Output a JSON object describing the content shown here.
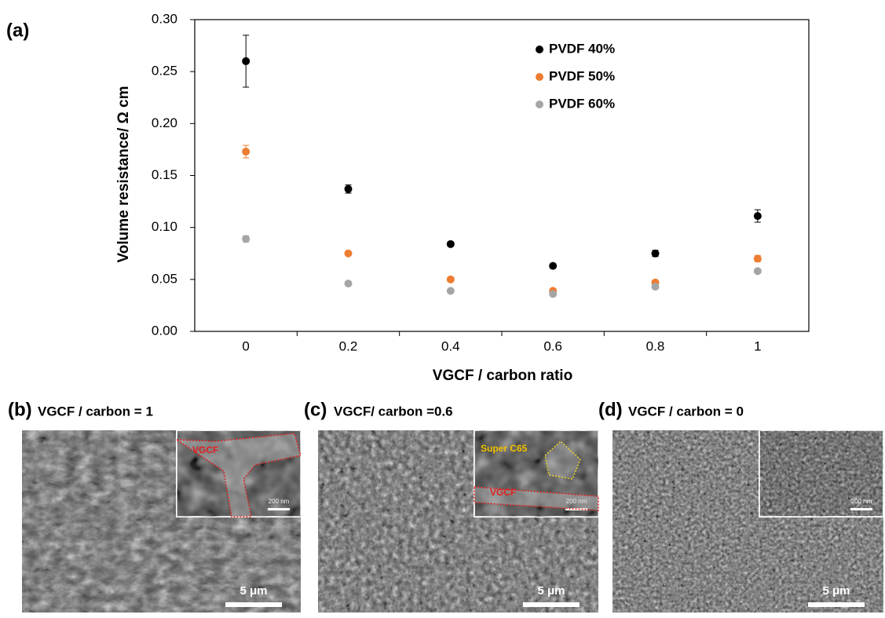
{
  "chart_data": {
    "type": "scatter",
    "panel_label": "(a)",
    "x_label": "VGCF / carbon ratio",
    "y_label": "Volume resistance/ Ω cm",
    "categories": [
      "0",
      "0.2",
      "0.4",
      "0.6",
      "0.8",
      "1"
    ],
    "series": [
      {
        "name": "PVDF 40%",
        "color": "#000000",
        "values": [
          0.26,
          0.137,
          0.084,
          0.063,
          0.075,
          0.111
        ],
        "errors": [
          0.025,
          0.004,
          0.002,
          0.002,
          0.003,
          0.006
        ]
      },
      {
        "name": "PVDF 50%",
        "color": "#ed7d31",
        "values": [
          0.173,
          0.075,
          0.05,
          0.039,
          0.047,
          0.07
        ],
        "errors": [
          0.006,
          0.002,
          0.002,
          0.001,
          0.002,
          0.003
        ]
      },
      {
        "name": "PVDF 60%",
        "color": "#a5a5a5",
        "values": [
          0.089,
          0.046,
          0.039,
          0.036,
          0.043,
          0.058
        ],
        "errors": [
          0.003,
          0.002,
          0.001,
          0.001,
          0.002,
          0.002
        ]
      }
    ],
    "ylim": [
      0,
      0.3
    ],
    "yticks": [
      {
        "value": 0,
        "label": "0.00"
      },
      {
        "value": 0.05,
        "label": "0.05"
      },
      {
        "value": 0.1,
        "label": "0.10"
      },
      {
        "value": 0.15,
        "label": "0.15"
      },
      {
        "value": 0.2,
        "label": "0.20"
      },
      {
        "value": 0.25,
        "label": "0.25"
      },
      {
        "value": 0.3,
        "label": "0.30"
      }
    ],
    "grid": false,
    "legend": "upper right"
  },
  "sem_images": [
    {
      "label": "(b)",
      "caption": "VGCF / carbon = 1",
      "scale_bar": "5 μm",
      "inset_scale_bar": "200 nm",
      "inset_annotations": [
        "VGCF"
      ]
    },
    {
      "label": "(c)",
      "caption": "VGCF/ carbon =0.6",
      "scale_bar": "5 μm",
      "inset_scale_bar": "200 nm",
      "inset_annotations": [
        "Super C65",
        "VGCF"
      ]
    },
    {
      "label": "(d)",
      "caption": "VGCF / carbon = 0",
      "scale_bar": "5 μm",
      "inset_scale_bar": "200 nm",
      "inset_annotations": []
    }
  ]
}
